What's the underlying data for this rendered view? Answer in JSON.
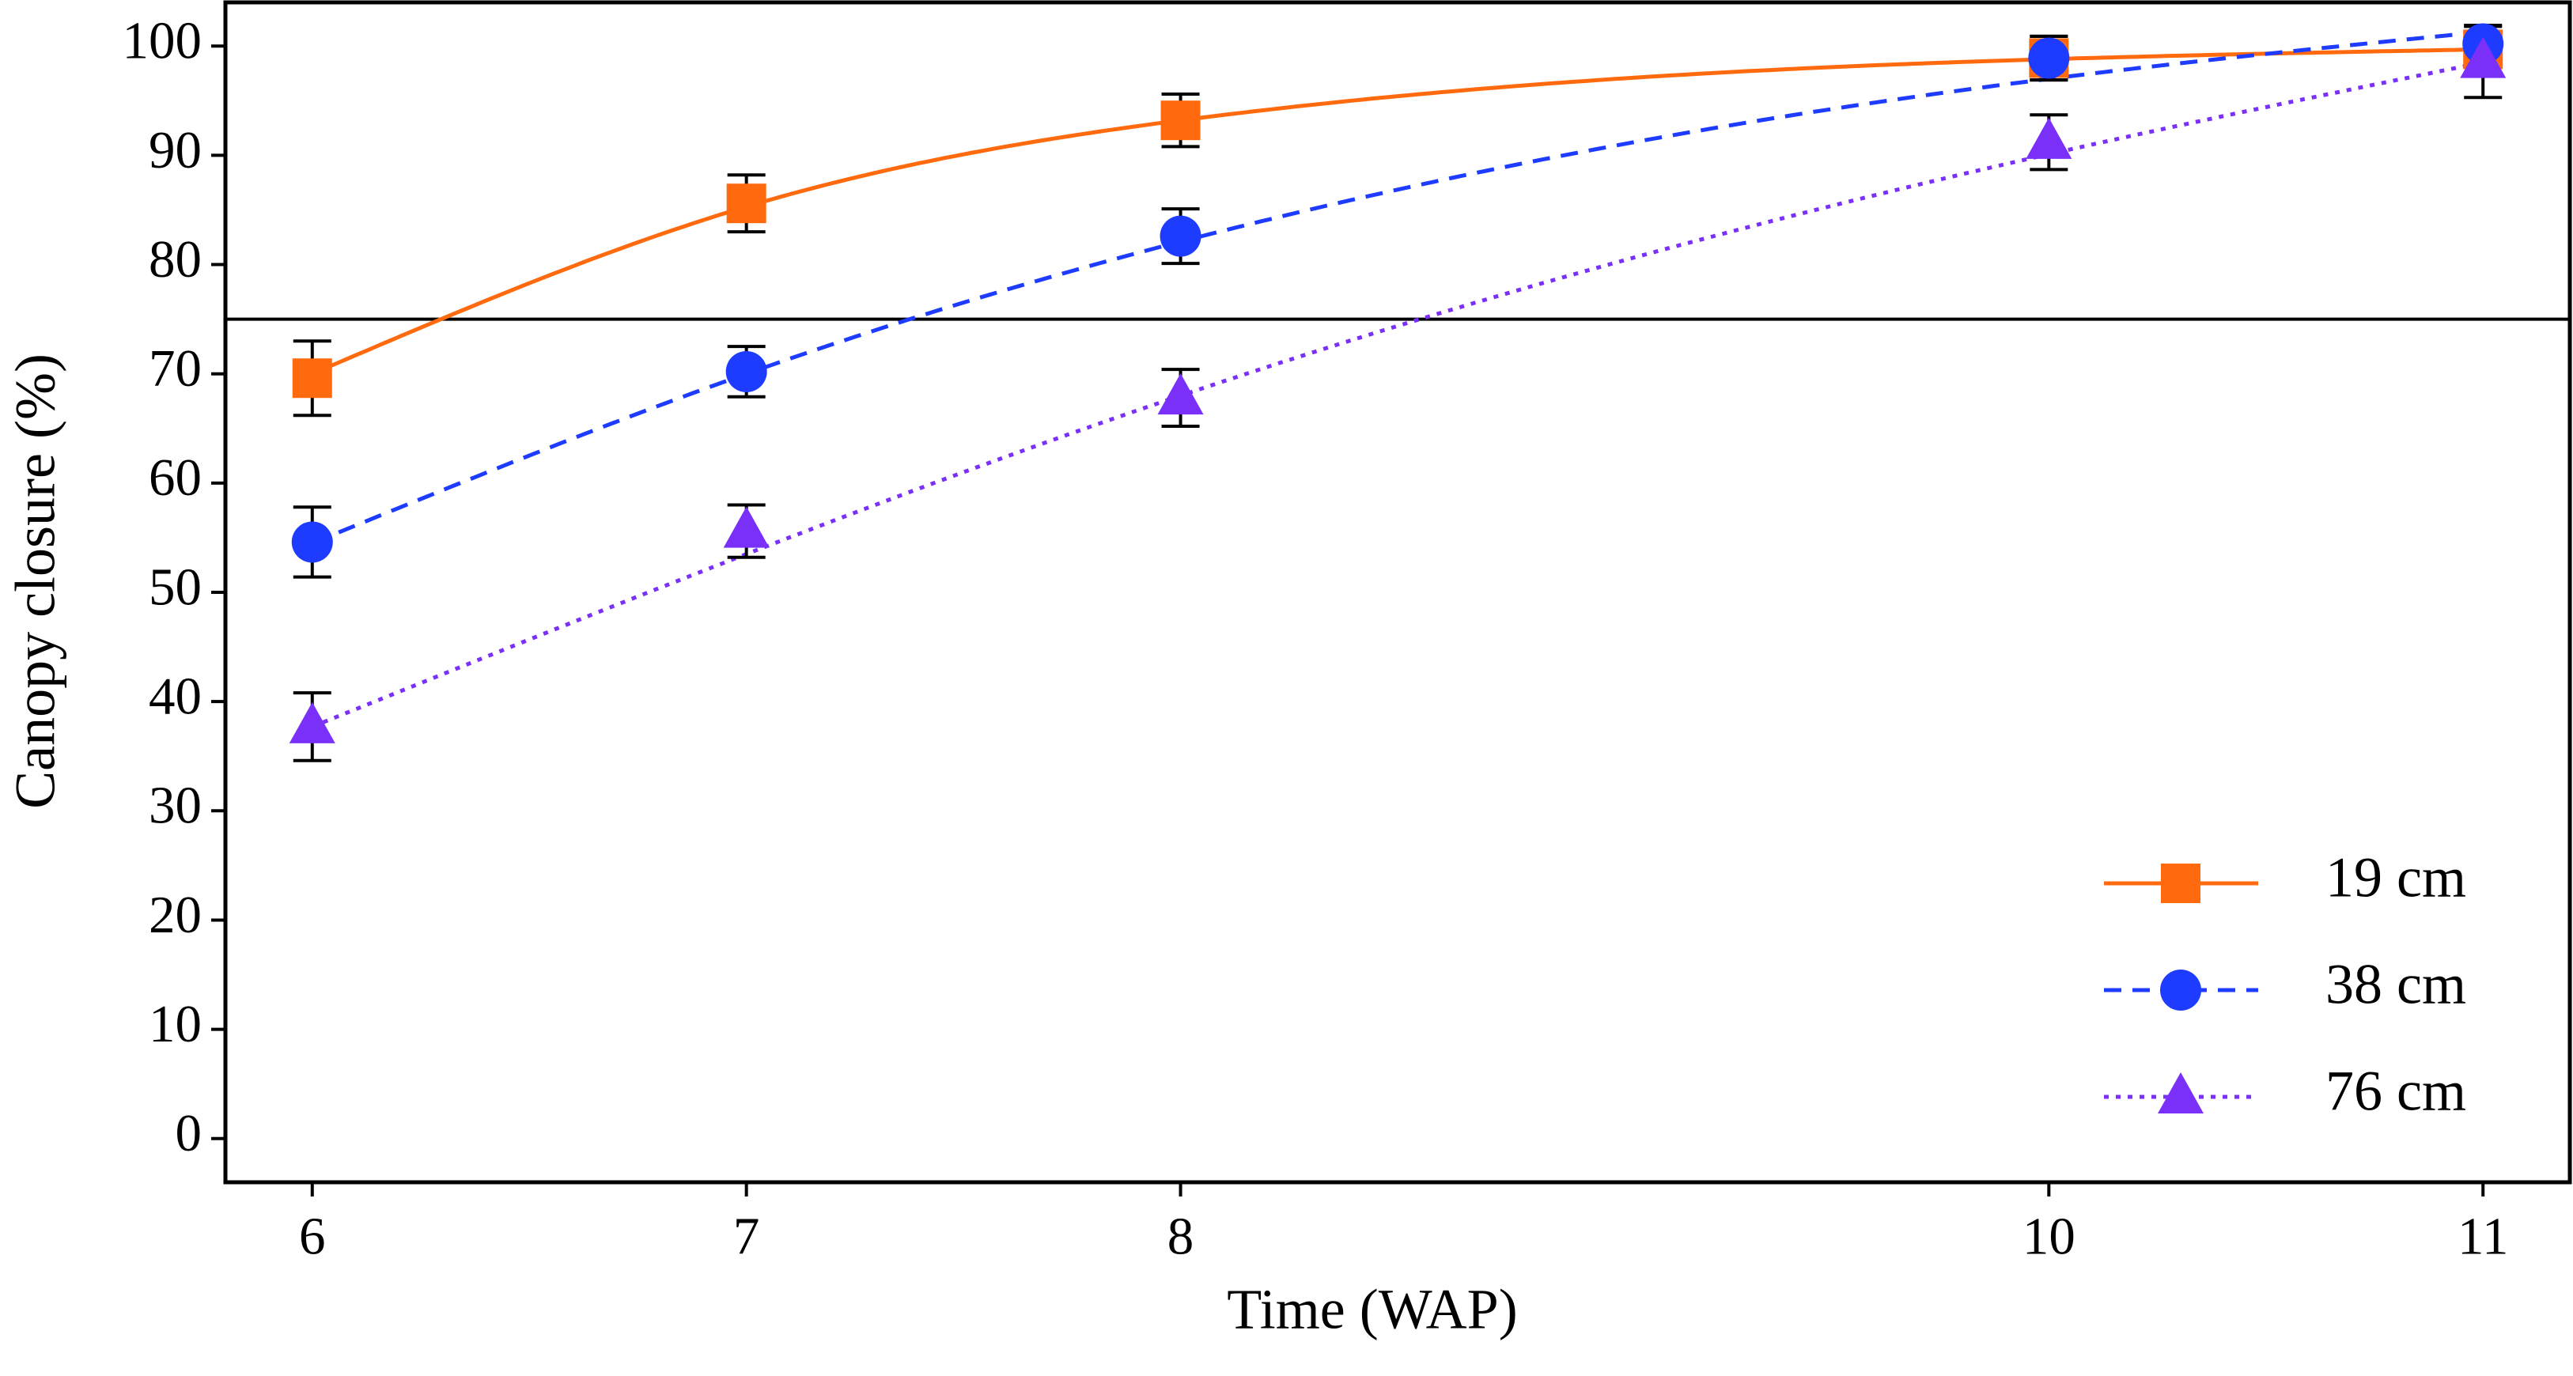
{
  "chart_data": {
    "type": "line",
    "xlabel": "Time (WAP)",
    "ylabel": "Canopy closure (%)",
    "x_ticks": [
      6,
      7,
      8,
      10,
      11
    ],
    "x_tick_labels": [
      "6",
      "7",
      "8",
      "10",
      "11"
    ],
    "y_ticks": [
      0,
      10,
      20,
      30,
      40,
      50,
      60,
      70,
      80,
      90,
      100
    ],
    "y_tick_labels": [
      "0",
      "10",
      "20",
      "30",
      "40",
      "50",
      "60",
      "70",
      "80",
      "90",
      "100"
    ],
    "xlim": [
      5.8,
      11.2
    ],
    "ylim": [
      -4,
      104
    ],
    "reference_line": 75,
    "legend_position": "bottom-right",
    "grid": false,
    "series": [
      {
        "name": "19 cm",
        "color": "#ff6a0e",
        "marker": "square",
        "line_style": "solid",
        "x": [
          6,
          7,
          8,
          10,
          11
        ],
        "values": [
          69.6,
          85.6,
          93.2,
          98.9,
          99.7
        ],
        "error": [
          3.4,
          2.6,
          2.4,
          2.0,
          1.3
        ],
        "fit": [
          70.0,
          85.3,
          93.2,
          98.8,
          99.7
        ]
      },
      {
        "name": "38 cm",
        "color": "#1e3cff",
        "marker": "circle",
        "line_style": "dashed",
        "x": [
          6,
          7,
          8,
          10,
          11
        ],
        "values": [
          54.6,
          70.2,
          82.6,
          98.9,
          100.2
        ],
        "error": [
          3.2,
          2.3,
          2.5,
          2.0,
          1.6
        ],
        "fit": [
          54.5,
          70.0,
          82.1,
          97.0,
          101.3
        ]
      },
      {
        "name": "76 cm",
        "color": "#7a30f8",
        "marker": "triangle",
        "line_style": "dotted",
        "x": [
          6,
          7,
          8,
          10,
          11
        ],
        "values": [
          37.7,
          55.6,
          67.8,
          91.2,
          98.6
        ],
        "error": [
          3.1,
          2.4,
          2.6,
          2.5,
          3.3
        ],
        "fit": [
          37.7,
          53.5,
          68.0,
          90.1,
          98.5
        ]
      }
    ]
  }
}
